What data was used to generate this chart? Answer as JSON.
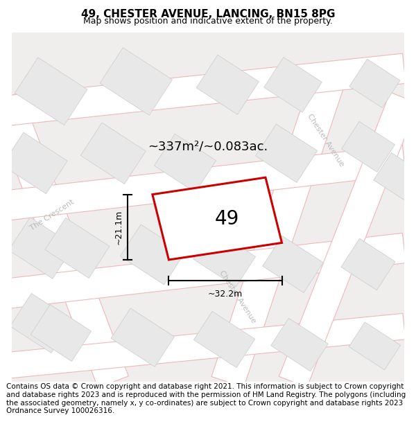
{
  "title": "49, CHESTER AVENUE, LANCING, BN15 8PG",
  "subtitle": "Map shows position and indicative extent of the property.",
  "area_label": "~337m²/~0.083ac.",
  "number_label": "49",
  "dim_width": "~32.2m",
  "dim_height": "~21.1m",
  "footer": "Contains OS data © Crown copyright and database right 2021. This information is subject to Crown copyright and database rights 2023 and is reproduced with the permission of HM Land Registry. The polygons (including the associated geometry, namely x, y co-ordinates) are subject to Crown copyright and database rights 2023 Ordnance Survey 100026316.",
  "bg_color": "#f0eded",
  "road_fill": "#ffffff",
  "road_stroke": "#f0b8b8",
  "block_fill": "#e8e8e8",
  "block_stroke": "#d0d0d0",
  "property_stroke": "#cc0000",
  "property_fill": "#ffffff",
  "street_label_color": "#bbbbbb",
  "title_fontsize": 11,
  "subtitle_fontsize": 9,
  "footer_fontsize": 7.5
}
